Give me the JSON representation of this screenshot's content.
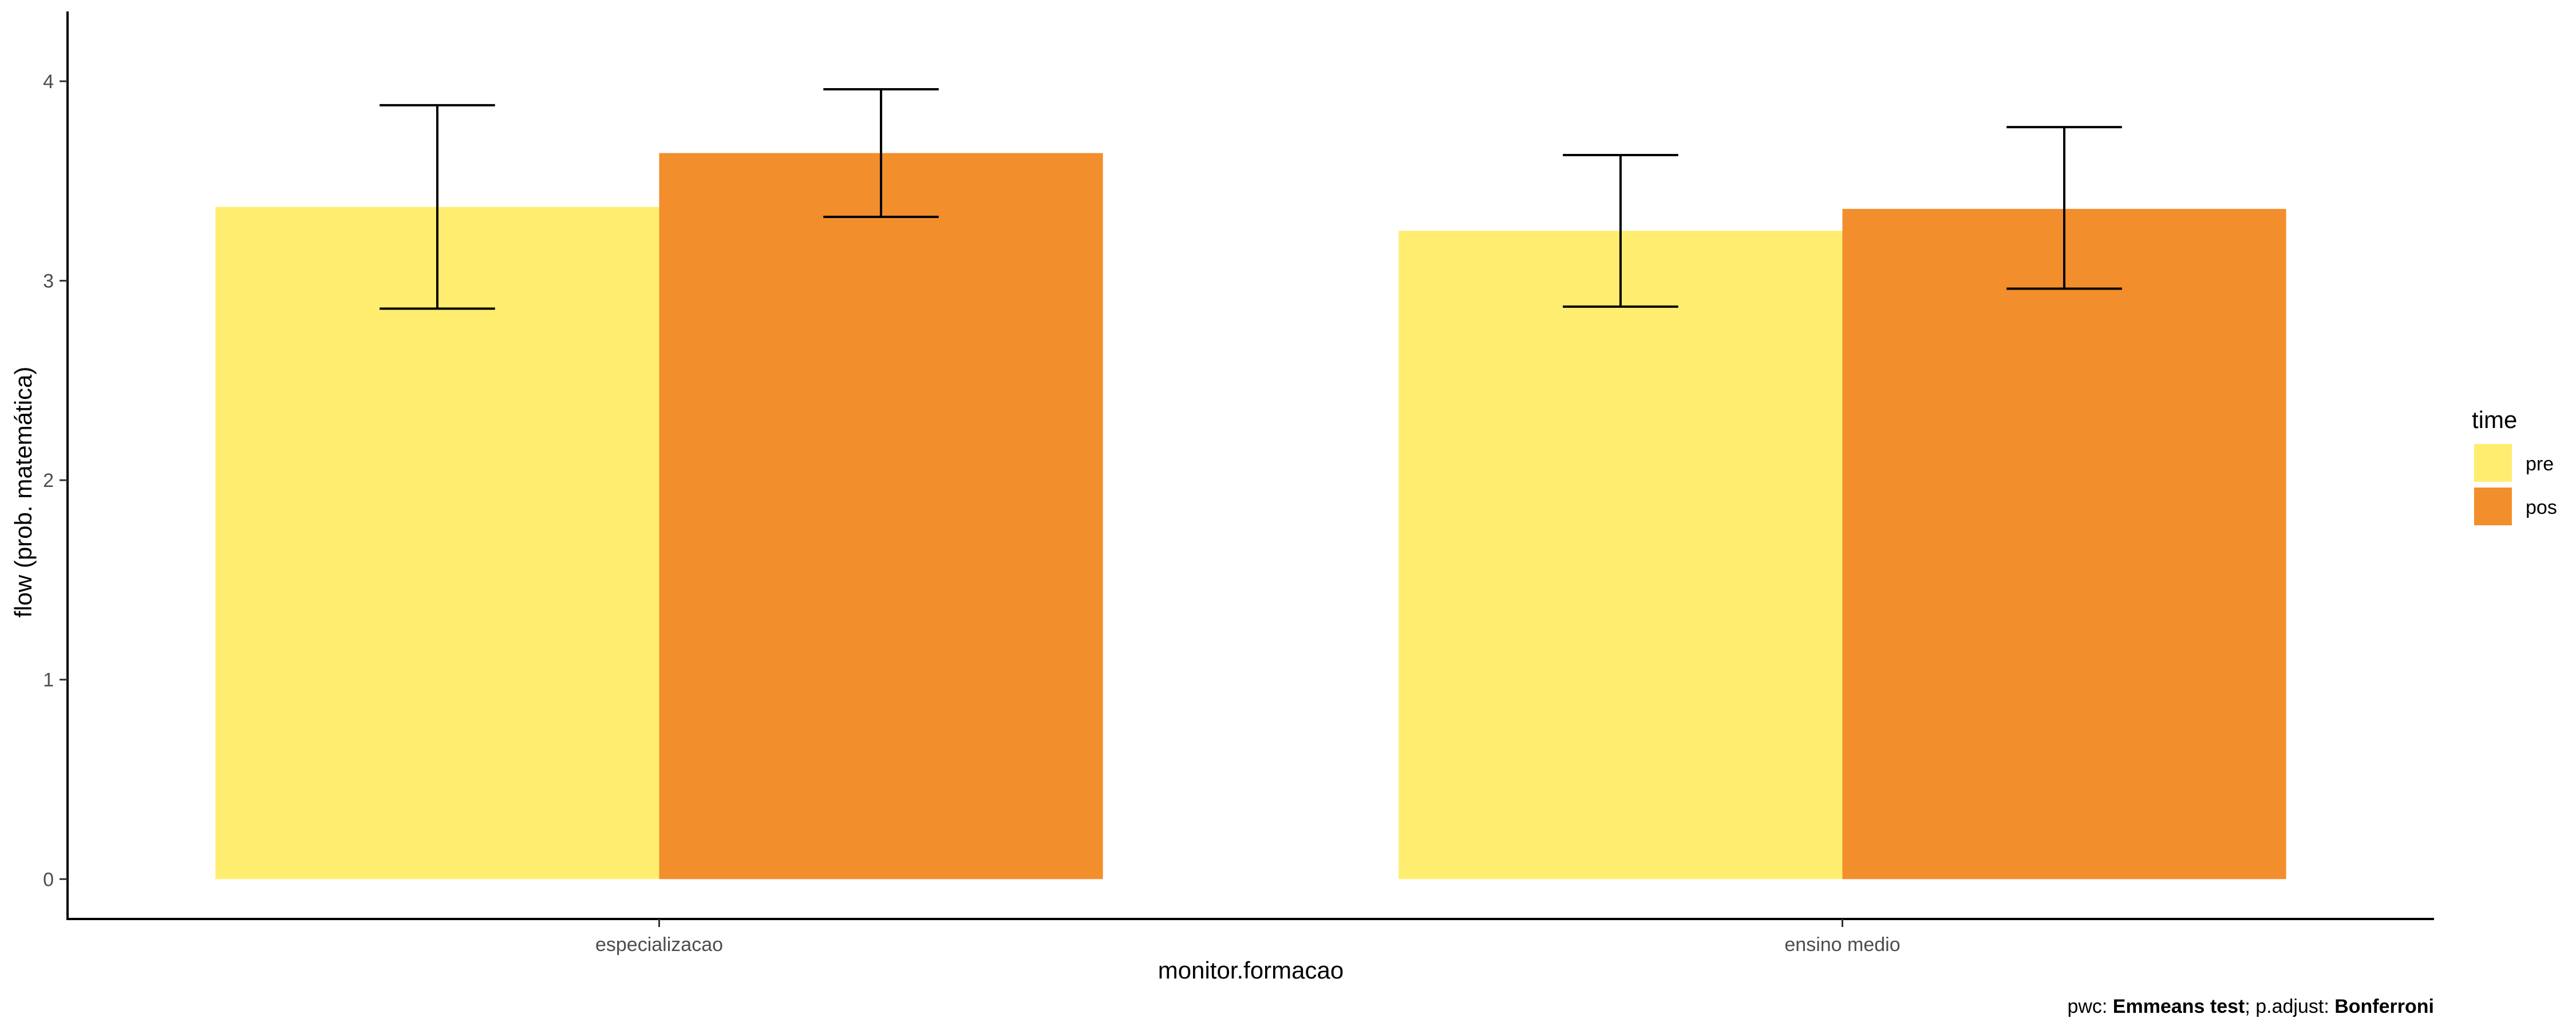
{
  "chart_data": {
    "type": "bar",
    "categories": [
      "especializacao",
      "ensino medio"
    ],
    "series": [
      {
        "name": "pre",
        "values": [
          3.37,
          3.25
        ],
        "error_low": [
          2.86,
          2.87
        ],
        "error_high": [
          3.88,
          3.63
        ]
      },
      {
        "name": "pos",
        "values": [
          3.64,
          3.36
        ],
        "error_low": [
          3.32,
          2.96
        ],
        "error_high": [
          3.96,
          3.77
        ]
      }
    ],
    "xlabel": "monitor.formacao",
    "ylabel": "flow (prob. matemática)",
    "ylim": [
      -0.2,
      4.35
    ],
    "yticks": [
      "0",
      "1",
      "2",
      "3",
      "4"
    ],
    "grid": false,
    "legend": {
      "title": "time",
      "position": "right",
      "entries": [
        "pre",
        "pos"
      ]
    },
    "caption": {
      "prefix": "pwc: ",
      "method": "Emmeans test",
      "middle": "; p.adjust: ",
      "adjust": "Bonferroni"
    },
    "colors": {
      "pre": "#FFED6F",
      "pos": "#F28E2B",
      "axis": "#000000",
      "tick_text": "#4d4d4d"
    }
  }
}
